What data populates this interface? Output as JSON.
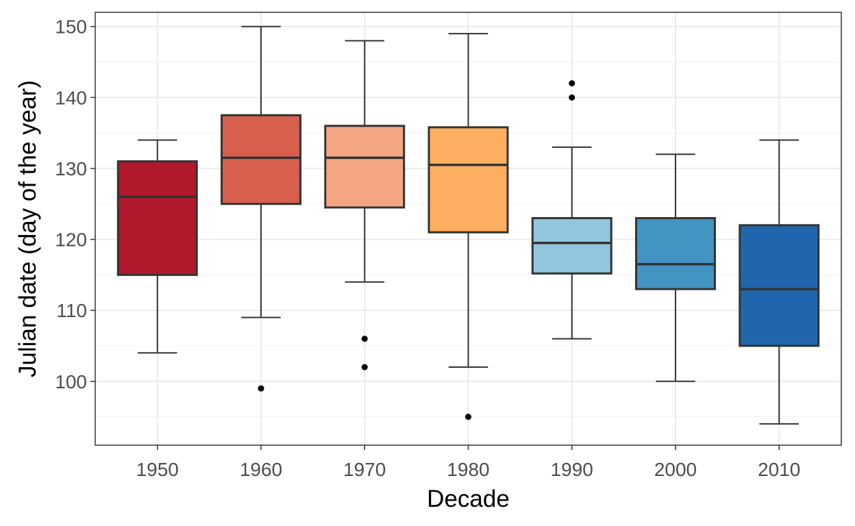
{
  "chart_data": {
    "type": "boxplot",
    "title": "",
    "xlabel": "Decade",
    "ylabel": "Julian date (day of the year)",
    "ylim": [
      91,
      152
    ],
    "yticks": [
      100,
      110,
      120,
      130,
      140,
      150
    ],
    "grid": true,
    "legend": "none",
    "categories": [
      "1950",
      "1960",
      "1970",
      "1980",
      "1990",
      "2000",
      "2010"
    ],
    "boxes": [
      {
        "category": "1950",
        "whisker_low": 104,
        "q1": 115,
        "median": 126,
        "q3": 131,
        "whisker_high": 134,
        "outliers": [],
        "color": "#B2182B"
      },
      {
        "category": "1960",
        "whisker_low": 109,
        "q1": 125,
        "median": 131.5,
        "q3": 137.5,
        "whisker_high": 150,
        "outliers": [
          99
        ],
        "color": "#D6604D"
      },
      {
        "category": "1970",
        "whisker_low": 114,
        "q1": 124.5,
        "median": 131.5,
        "q3": 136,
        "whisker_high": 148,
        "outliers": [
          106,
          102
        ],
        "color": "#F4A582"
      },
      {
        "category": "1980",
        "whisker_low": 102,
        "q1": 121,
        "median": 130.5,
        "q3": 135.8,
        "whisker_high": 149,
        "outliers": [
          95
        ],
        "color": "#FDAE61"
      },
      {
        "category": "1990",
        "whisker_low": 106,
        "q1": 115.2,
        "median": 119.5,
        "q3": 123,
        "whisker_high": 133,
        "outliers": [
          142,
          140
        ],
        "color": "#92C5DE"
      },
      {
        "category": "2000",
        "whisker_low": 100,
        "q1": 113,
        "median": 116.5,
        "q3": 123,
        "whisker_high": 132,
        "outliers": [],
        "color": "#4393C3"
      },
      {
        "category": "2010",
        "whisker_low": 94,
        "q1": 105,
        "median": 113,
        "q3": 122,
        "whisker_high": 134,
        "outliers": [],
        "color": "#2166AC"
      }
    ]
  }
}
